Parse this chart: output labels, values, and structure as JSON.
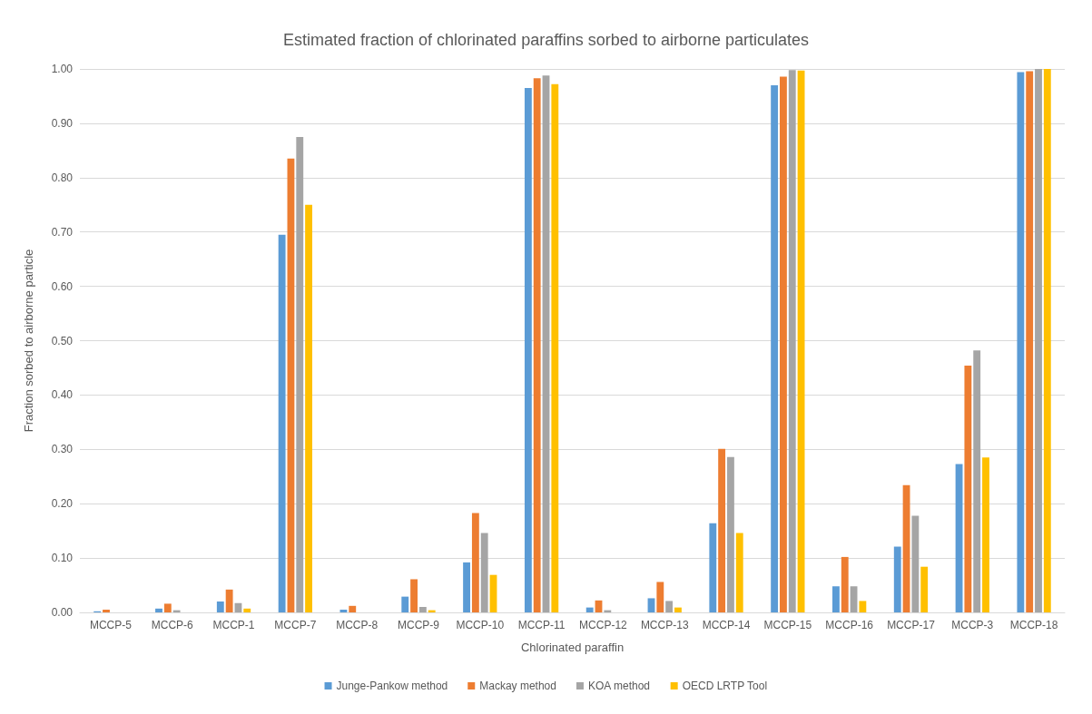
{
  "chart_data": {
    "type": "bar",
    "title": "Estimated fraction of chlorinated paraffins sorbed to airborne particulates",
    "xlabel": "Chlorinated paraffin",
    "ylabel": "Fraction sorbed to airborne particle",
    "categories": [
      "MCCP-5",
      "MCCP-6",
      "MCCP-1",
      "MCCP-7",
      "MCCP-8",
      "MCCP-9",
      "MCCP-10",
      "MCCP-11",
      "MCCP-12",
      "MCCP-13",
      "MCCP-14",
      "MCCP-15",
      "MCCP-16",
      "MCCP-17",
      "MCCP-3",
      "MCCP-18"
    ],
    "series": [
      {
        "name": "Junge-Pankow method",
        "color": "#5b9bd5",
        "values": [
          0.002,
          0.007,
          0.02,
          0.695,
          0.005,
          0.029,
          0.092,
          0.965,
          0.009,
          0.026,
          0.164,
          0.97,
          0.048,
          0.121,
          0.273,
          0.994
        ]
      },
      {
        "name": "Mackay method",
        "color": "#ed7d31",
        "values": [
          0.005,
          0.016,
          0.042,
          0.835,
          0.012,
          0.061,
          0.183,
          0.983,
          0.022,
          0.056,
          0.301,
          0.986,
          0.102,
          0.234,
          0.454,
          0.996
        ]
      },
      {
        "name": "KOA method",
        "color": "#a5a5a5",
        "values": [
          0,
          0.004,
          0.017,
          0.875,
          0,
          0.01,
          0.146,
          0.988,
          0.004,
          0.021,
          0.286,
          0.998,
          0.048,
          0.178,
          0.482,
          1.0
        ]
      },
      {
        "name": "OECD LRTP Tool",
        "color": "#ffc000",
        "values": [
          0,
          0,
          0.007,
          0.75,
          0,
          0.004,
          0.069,
          0.972,
          0,
          0.009,
          0.146,
          0.997,
          0.021,
          0.084,
          0.285,
          1.0
        ]
      }
    ],
    "ylim": [
      0,
      1
    ],
    "yticks": [
      {
        "value": 0,
        "label": "0.00"
      },
      {
        "value": 0.1,
        "label": "0.10"
      },
      {
        "value": 0.2,
        "label": "0.20"
      },
      {
        "value": 0.3,
        "label": "0.30"
      },
      {
        "value": 0.4,
        "label": "0.40"
      },
      {
        "value": 0.5,
        "label": "0.50"
      },
      {
        "value": 0.6,
        "label": "0.60"
      },
      {
        "value": 0.7,
        "label": "0.70"
      },
      {
        "value": 0.8,
        "label": "0.80"
      },
      {
        "value": 0.9,
        "label": "0.90"
      },
      {
        "value": 1,
        "label": "1.00"
      }
    ],
    "grid": "y",
    "legend": "bottom"
  }
}
